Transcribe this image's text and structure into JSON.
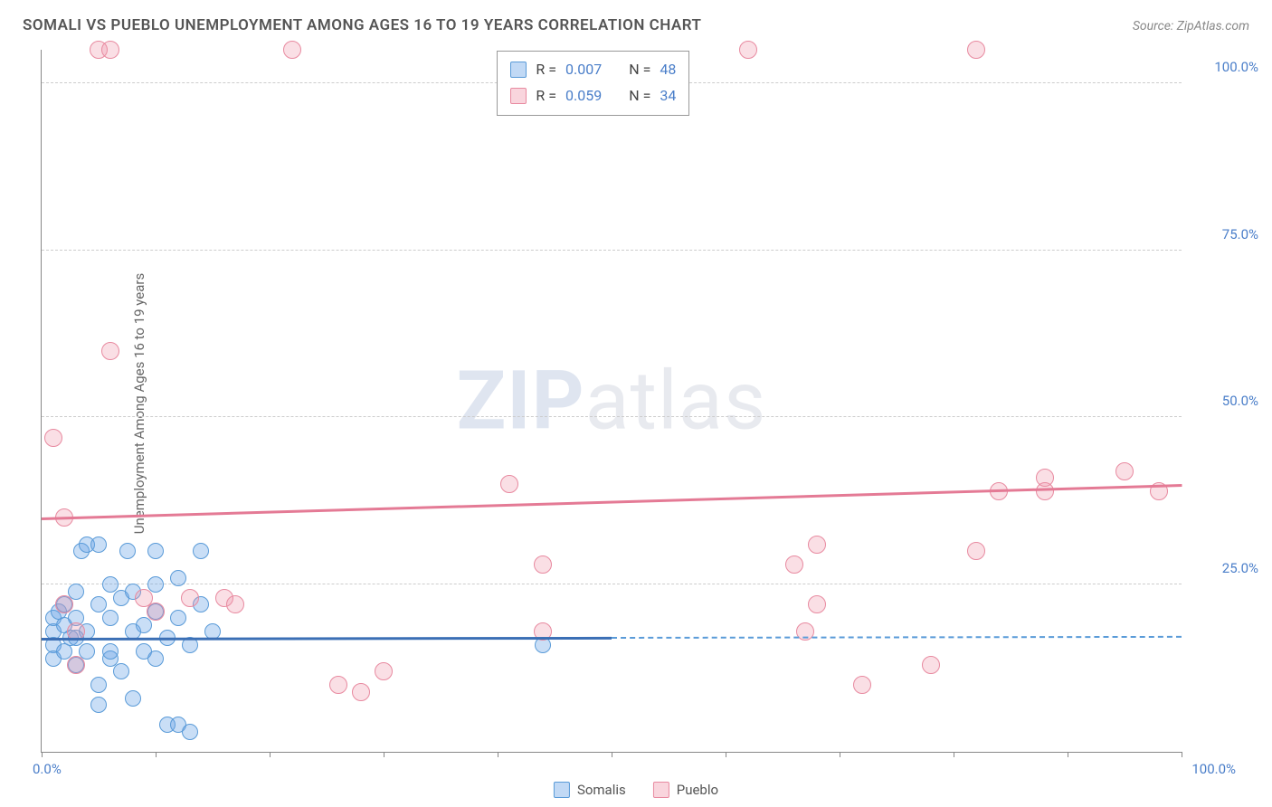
{
  "title": "SOMALI VS PUEBLO UNEMPLOYMENT AMONG AGES 16 TO 19 YEARS CORRELATION CHART",
  "source": "Source: ZipAtlas.com",
  "y_axis_label": "Unemployment Among Ages 16 to 19 years",
  "watermark_bold": "ZIP",
  "watermark_light": "atlas",
  "chart": {
    "type": "scatter",
    "background_color": "#ffffff",
    "grid_color": "#cccccc",
    "axis_color": "#888888",
    "tick_label_color": "#4a7ec9",
    "tick_fontsize": 15,
    "xlim": [
      0,
      100
    ],
    "ylim": [
      0,
      105
    ],
    "x_ticks": [
      0,
      10,
      20,
      30,
      40,
      50,
      60,
      70,
      80,
      90,
      100
    ],
    "x_tick_labels": {
      "0": "0.0%",
      "100": "100.0%"
    },
    "y_gridlines": [
      25,
      50,
      75,
      100
    ],
    "y_tick_labels": {
      "25": "25.0%",
      "50": "50.0%",
      "75": "75.0%",
      "100": "100.0%"
    },
    "series": [
      {
        "name": "Somalis",
        "color_fill": "rgba(100,160,230,0.35)",
        "color_stroke": "#5a9bd8",
        "marker_radius": 9,
        "trend": {
          "y_start": 17.0,
          "y_end": 17.3,
          "solid_until_x": 50,
          "color": "#3b6fb5"
        },
        "R": "0.007",
        "N": "48",
        "points": [
          [
            1,
            18
          ],
          [
            1,
            20
          ],
          [
            1,
            16
          ],
          [
            1,
            14
          ],
          [
            1.5,
            21
          ],
          [
            2,
            19
          ],
          [
            2,
            15
          ],
          [
            2,
            22
          ],
          [
            2.5,
            17
          ],
          [
            3,
            24
          ],
          [
            3,
            20
          ],
          [
            3,
            13
          ],
          [
            3.5,
            30
          ],
          [
            4,
            31
          ],
          [
            4,
            15
          ],
          [
            4,
            18
          ],
          [
            5,
            22
          ],
          [
            5,
            10
          ],
          [
            5,
            7
          ],
          [
            6,
            20
          ],
          [
            6,
            25
          ],
          [
            6,
            14
          ],
          [
            7,
            23
          ],
          [
            7,
            12
          ],
          [
            7.5,
            30
          ],
          [
            8,
            18
          ],
          [
            8,
            8
          ],
          [
            9,
            19
          ],
          [
            9,
            15
          ],
          [
            10,
            21
          ],
          [
            10,
            25
          ],
          [
            10,
            14
          ],
          [
            11,
            17
          ],
          [
            11,
            4
          ],
          [
            12,
            26
          ],
          [
            12,
            4
          ],
          [
            12,
            20
          ],
          [
            13,
            16
          ],
          [
            13,
            3
          ],
          [
            14,
            30
          ],
          [
            14,
            22
          ],
          [
            15,
            18
          ],
          [
            10,
            30
          ],
          [
            5,
            31
          ],
          [
            8,
            24
          ],
          [
            6,
            15
          ],
          [
            44,
            16
          ],
          [
            3,
            17
          ]
        ]
      },
      {
        "name": "Pueblo",
        "color_fill": "rgba(240,150,170,0.3)",
        "color_stroke": "#e88aa0",
        "marker_radius": 10,
        "trend": {
          "y_start": 35,
          "y_end": 40,
          "solid_until_x": 100,
          "color": "#e47a95"
        },
        "R": "0.059",
        "N": "34",
        "points": [
          [
            1,
            47
          ],
          [
            2,
            35
          ],
          [
            2,
            22
          ],
          [
            3,
            13
          ],
          [
            3,
            18
          ],
          [
            5,
            105
          ],
          [
            6,
            105
          ],
          [
            6,
            60
          ],
          [
            9,
            23
          ],
          [
            10,
            21
          ],
          [
            13,
            23
          ],
          [
            16,
            23
          ],
          [
            17,
            22
          ],
          [
            22,
            105
          ],
          [
            26,
            10
          ],
          [
            28,
            9
          ],
          [
            30,
            12
          ],
          [
            41,
            40
          ],
          [
            44,
            28
          ],
          [
            44,
            18
          ],
          [
            62,
            105
          ],
          [
            66,
            28
          ],
          [
            67,
            18
          ],
          [
            68,
            22
          ],
          [
            68,
            31
          ],
          [
            72,
            10
          ],
          [
            78,
            13
          ],
          [
            82,
            105
          ],
          [
            82,
            30
          ],
          [
            84,
            39
          ],
          [
            88,
            41
          ],
          [
            88,
            39
          ],
          [
            95,
            42
          ],
          [
            98,
            39
          ]
        ]
      }
    ]
  },
  "legend_top": [
    {
      "swatch": "blue",
      "r_label": "R =",
      "r_val": "0.007",
      "n_label": "N =",
      "n_val": "48"
    },
    {
      "swatch": "pink",
      "r_label": "R =",
      "r_val": "0.059",
      "n_label": "N =",
      "n_val": "34"
    }
  ],
  "legend_bottom": [
    {
      "swatch": "blue",
      "label": "Somalis"
    },
    {
      "swatch": "pink",
      "label": "Pueblo"
    }
  ]
}
